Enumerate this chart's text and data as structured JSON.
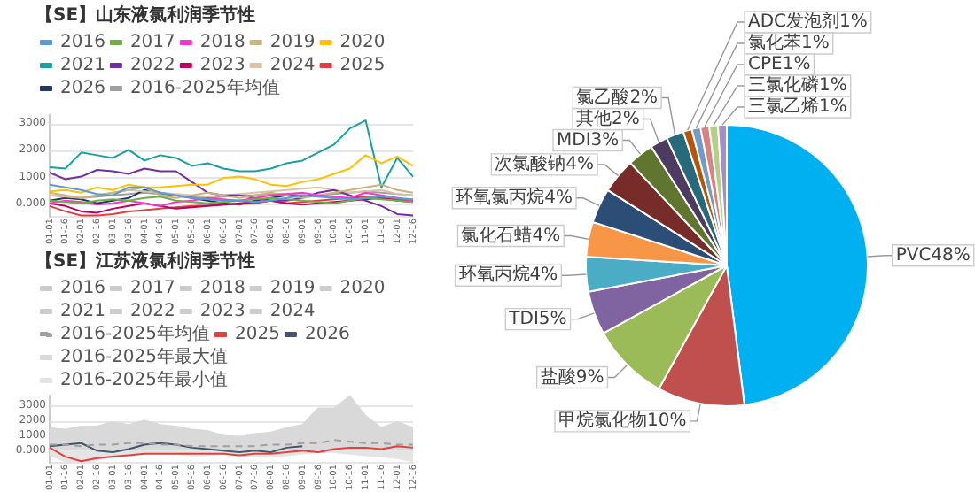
{
  "chart_data": [
    {
      "type": "line",
      "title": "【SE】山东液氯利润季节性",
      "categories": [
        "01-01",
        "01-16",
        "02-01",
        "02-16",
        "03-01",
        "03-16",
        "04-01",
        "04-16",
        "05-01",
        "05-16",
        "06-01",
        "06-16",
        "07-01",
        "07-16",
        "08-01",
        "08-16",
        "09-01",
        "09-16",
        "10-01",
        "10-16",
        "11-01",
        "11-16",
        "12-01",
        "12-16"
      ],
      "series": [
        {
          "name": "2016",
          "color": "#5b9bd5",
          "values": [
            700,
            600,
            500,
            350,
            300,
            600,
            600,
            400,
            300,
            200,
            150,
            100,
            100,
            50,
            100,
            200,
            300,
            250,
            200,
            150,
            200,
            250,
            200,
            150
          ]
        },
        {
          "name": "2017",
          "color": "#70ad47",
          "values": [
            100,
            50,
            0,
            100,
            150,
            100,
            200,
            250,
            100,
            50,
            0,
            50,
            100,
            150,
            200,
            150,
            100,
            50,
            0,
            100,
            200,
            150,
            100,
            50
          ]
        },
        {
          "name": "2018",
          "color": "#ff33cc",
          "values": [
            0,
            100,
            50,
            -50,
            0,
            100,
            0,
            -100,
            50,
            100,
            200,
            150,
            100,
            200,
            300,
            350,
            400,
            300,
            250,
            200,
            400,
            300,
            200,
            100
          ]
        },
        {
          "name": "2019",
          "color": "#c9b37e",
          "values": [
            400,
            300,
            200,
            300,
            400,
            500,
            600,
            300,
            200,
            300,
            400,
            300,
            200,
            300,
            400,
            300,
            200,
            300,
            400,
            500,
            600,
            700,
            500,
            400
          ]
        },
        {
          "name": "2020",
          "color": "#ffc000",
          "values": [
            450,
            500,
            400,
            600,
            500,
            700,
            600,
            600,
            650,
            700,
            700,
            950,
            1000,
            900,
            700,
            650,
            800,
            900,
            1100,
            1300,
            1800,
            1500,
            1750,
            1400
          ]
        },
        {
          "name": "2021",
          "color": "#1aa0a0",
          "values": [
            1350,
            1300,
            1900,
            1800,
            1700,
            2000,
            1600,
            1800,
            1700,
            1400,
            1500,
            1300,
            1200,
            1200,
            1300,
            1500,
            1600,
            1900,
            2200,
            2800,
            3100,
            600,
            1700,
            1000
          ]
        },
        {
          "name": "2022",
          "color": "#7030a0",
          "values": [
            1150,
            900,
            1000,
            1250,
            1200,
            1100,
            1300,
            1200,
            1200,
            800,
            400,
            300,
            300,
            200,
            100,
            100,
            200,
            400,
            500,
            300,
            100,
            -100,
            -400,
            -450
          ]
        },
        {
          "name": "2023",
          "color": "#c00060",
          "values": [
            0,
            -100,
            -300,
            -350,
            -200,
            -100,
            0,
            -100,
            -200,
            -150,
            -100,
            -50,
            0,
            50,
            100,
            0,
            -50,
            0,
            50,
            100,
            150,
            200,
            100,
            50
          ]
        },
        {
          "name": "2024",
          "color": "#d9c3a5",
          "values": [
            300,
            250,
            200,
            300,
            400,
            500,
            450,
            400,
            350,
            300,
            250,
            300,
            350,
            400,
            450,
            500,
            550,
            600,
            500,
            400,
            450,
            500,
            350,
            300
          ]
        },
        {
          "name": "2025",
          "color": "#e04040",
          "values": [
            -100,
            -300,
            -450,
            -450,
            -400,
            -300,
            -250,
            -200,
            -150,
            -100,
            -80,
            -50,
            -20,
            0,
            100,
            0,
            50,
            100,
            150,
            200,
            250,
            200,
            150,
            100
          ]
        },
        {
          "name": "2026",
          "color": "#203864",
          "values": [
            100,
            200,
            150,
            0,
            100,
            200,
            500,
            400,
            300,
            200,
            100,
            0,
            -50,
            100,
            200,
            300,
            250,
            null,
            null,
            null,
            null,
            null,
            null,
            null
          ]
        },
        {
          "name": "2016-2025年均值",
          "color": "#a0a0a0",
          "values": [
            300,
            250,
            200,
            250,
            300,
            350,
            400,
            350,
            300,
            250,
            200,
            250,
            300,
            300,
            350,
            350,
            300,
            300,
            350,
            400,
            450,
            400,
            350,
            300
          ]
        }
      ],
      "ylim": [
        -500,
        3300
      ],
      "yticks": [
        {
          "value": 0,
          "label": "0.000"
        },
        1000,
        2000,
        3000
      ],
      "grid": "y",
      "legend": "top",
      "marker": "none"
    },
    {
      "type": "line",
      "title": "【SE】江苏液氯利润季节性",
      "categories": [
        "01-01",
        "01-16",
        "02-01",
        "02-16",
        "03-01",
        "03-16",
        "04-01",
        "04-16",
        "05-01",
        "05-16",
        "06-01",
        "06-16",
        "07-01",
        "07-16",
        "08-01",
        "08-16",
        "09-01",
        "09-16",
        "10-01",
        "10-16",
        "11-01",
        "11-16",
        "12-01",
        "12-16"
      ],
      "series": [
        {
          "name": "2016",
          "color": "#cccccc",
          "values": [
            null,
            null,
            null,
            null,
            null,
            null,
            null,
            null,
            null,
            null,
            null,
            null,
            null,
            null,
            null,
            null,
            null,
            null,
            null,
            null,
            null,
            null,
            null,
            null
          ]
        },
        {
          "name": "2017",
          "color": "#cccccc",
          "values": [
            null,
            null,
            null,
            null,
            null,
            null,
            null,
            null,
            null,
            null,
            null,
            null,
            null,
            null,
            null,
            null,
            null,
            null,
            null,
            null,
            null,
            null,
            null,
            null
          ]
        },
        {
          "name": "2018",
          "color": "#cccccc",
          "values": [
            null,
            null,
            null,
            null,
            null,
            null,
            null,
            null,
            null,
            null,
            null,
            null,
            null,
            null,
            null,
            null,
            null,
            null,
            null,
            null,
            null,
            null,
            null,
            null
          ]
        },
        {
          "name": "2019",
          "color": "#cccccc",
          "values": [
            null,
            null,
            null,
            null,
            null,
            null,
            null,
            null,
            null,
            null,
            null,
            null,
            null,
            null,
            null,
            null,
            null,
            null,
            null,
            null,
            null,
            null,
            null,
            null
          ]
        },
        {
          "name": "2020",
          "color": "#cccccc",
          "values": [
            null,
            null,
            null,
            null,
            null,
            null,
            null,
            null,
            null,
            null,
            null,
            null,
            null,
            null,
            null,
            null,
            null,
            null,
            null,
            null,
            null,
            null,
            null,
            null
          ]
        },
        {
          "name": "2021",
          "color": "#cccccc",
          "values": [
            null,
            null,
            null,
            null,
            null,
            null,
            null,
            null,
            null,
            null,
            null,
            null,
            null,
            null,
            null,
            null,
            null,
            null,
            null,
            null,
            null,
            null,
            null,
            null
          ]
        },
        {
          "name": "2022",
          "color": "#cccccc",
          "values": [
            null,
            null,
            null,
            null,
            null,
            null,
            null,
            null,
            null,
            null,
            null,
            null,
            null,
            null,
            null,
            null,
            null,
            null,
            null,
            null,
            null,
            null,
            null,
            null
          ]
        },
        {
          "name": "2023",
          "color": "#cccccc",
          "values": [
            null,
            null,
            null,
            null,
            null,
            null,
            null,
            null,
            null,
            null,
            null,
            null,
            null,
            null,
            null,
            null,
            null,
            null,
            null,
            null,
            null,
            null,
            null,
            null
          ]
        },
        {
          "name": "2024",
          "color": "#cccccc",
          "values": [
            null,
            null,
            null,
            null,
            null,
            null,
            null,
            null,
            null,
            null,
            null,
            null,
            null,
            null,
            null,
            null,
            null,
            null,
            null,
            null,
            null,
            null,
            null,
            null
          ]
        },
        {
          "name": "2016-2025年最大值",
          "type": "area",
          "color": "#d9d9d9",
          "values": [
            1500,
            1400,
            1600,
            1600,
            1900,
            1700,
            2000,
            1700,
            1600,
            1400,
            1300,
            1000,
            900,
            1100,
            1200,
            1500,
            1700,
            2800,
            2800,
            3600,
            2300,
            1500,
            1900,
            1500
          ]
        },
        {
          "name": "2016-2025年最小值",
          "type": "area",
          "color": "#e4e4e4",
          "values": [
            -300,
            -700,
            -800,
            -600,
            -400,
            -200,
            -100,
            -100,
            -200,
            -300,
            -300,
            -200,
            -300,
            -400,
            -400,
            -300,
            -200,
            -100,
            -100,
            -200,
            -300,
            -400,
            -500,
            -700
          ]
        },
        {
          "name": "2016-2025年均值",
          "color": "#a0a0a0",
          "line_style": "dashed",
          "values": [
            400,
            400,
            300,
            400,
            400,
            500,
            500,
            400,
            400,
            300,
            300,
            300,
            300,
            300,
            400,
            400,
            500,
            500,
            700,
            600,
            500,
            500,
            400,
            400
          ]
        },
        {
          "name": "2025",
          "color": "#e04040",
          "values": [
            200,
            -400,
            -700,
            -500,
            -400,
            -300,
            -200,
            -200,
            -200,
            -200,
            -200,
            -200,
            -300,
            -200,
            -200,
            -100,
            0,
            -100,
            100,
            200,
            200,
            100,
            300,
            200
          ]
        },
        {
          "name": "2026",
          "color": "#44546a",
          "values": [
            300,
            400,
            500,
            0,
            -100,
            100,
            400,
            500,
            400,
            200,
            100,
            0,
            -100,
            0,
            -100,
            200,
            300,
            null,
            null,
            null,
            null,
            null,
            null,
            null
          ]
        }
      ],
      "ylim": [
        -800,
        3650
      ],
      "yticks": [
        {
          "value": 0,
          "label": "0.000"
        },
        1000,
        2000,
        3000
      ],
      "grid": "y",
      "legend": "top",
      "marker": "none"
    },
    {
      "type": "pie",
      "categories": [
        "PVC",
        "甲烷氯化物",
        "盐酸",
        "TDI",
        "环氧丙烷",
        "氯化石蜡",
        "环氧氯丙烷",
        "次氯酸钠",
        "MDI",
        "其他",
        "氯乙酸",
        "ADC发泡剂",
        "氯化苯",
        "CPE",
        "三氯化磷",
        "三氯乙烯"
      ],
      "values": [
        48,
        10,
        9,
        5,
        4,
        4,
        4,
        4,
        3,
        2,
        2,
        1,
        1,
        1,
        1,
        1
      ],
      "value_labels": [
        "48%",
        "10%",
        "9%",
        "5%",
        "4%",
        "4%",
        "4%",
        "4%",
        "3%",
        "2%",
        "2%",
        "1%",
        "1%",
        "1%",
        "1%",
        "1%"
      ],
      "colors": [
        "#00b0f0",
        "#c0504d",
        "#9bbb59",
        "#8064a2",
        "#4bacc6",
        "#f79646",
        "#2c4d75",
        "#772c2a",
        "#5f7530",
        "#4d3b62",
        "#276a7c",
        "#b65708",
        "#729aca",
        "#d9827f",
        "#b3d088",
        "#a390c0"
      ]
    }
  ]
}
